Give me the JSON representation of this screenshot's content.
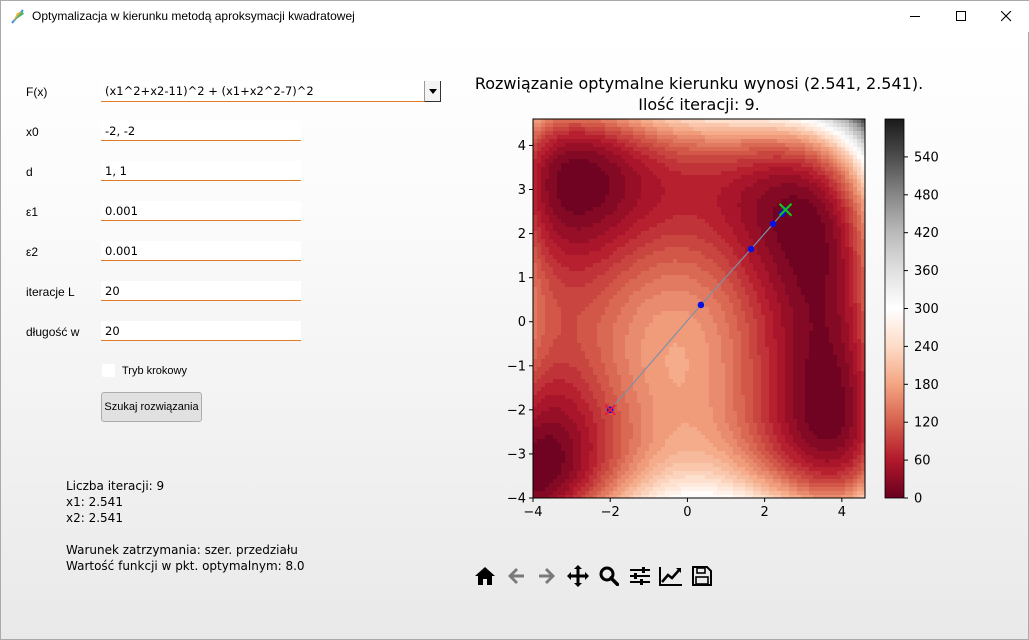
{
  "window": {
    "title": "Optymalizacja w kierunku metodą aproksymacji kwadratowej"
  },
  "form": {
    "fx_label": "F(x)",
    "fx_value": "(x1^2+x2-11)^2 + (x1+x2^2-7)^2",
    "x0_label": "x0",
    "x0_value": "-2, -2",
    "d_label": "d",
    "d_value": "1, 1",
    "eps1_label": "ε1",
    "eps1_value": "0.001",
    "eps2_label": "ε2",
    "eps2_value": "0.001",
    "iter_label": "iteracje L",
    "iter_value": "20",
    "len_label": "długość w",
    "len_value": "20",
    "step_mode_label": "Tryb krokowy",
    "step_mode_checked": false,
    "search_button": "Szukaj rozwiązania"
  },
  "results": {
    "iterations": "Liczba iteracji: 9",
    "x1": "x1: 2.541",
    "x2": "x2: 2.541",
    "blank": "",
    "stop": "Warunek zatrzymania: szer. przedziału",
    "fval": "Wartość funkcji w pkt. optymalnym: 8.0"
  },
  "plot": {
    "title_line1": "Rozwiązanie optymalne kierunku wynosi (2.541, 2.541).",
    "title_line2": "Ilość iteracji: 9."
  },
  "chart_data": {
    "type": "heatmap",
    "function": "(x1^2+x2-11)^2 + (x1+x2^2-7)^2",
    "xlim": [
      -4,
      4.6
    ],
    "ylim": [
      -4,
      4.6
    ],
    "x_ticks": [
      "−4",
      "−2",
      "0",
      "2",
      "4"
    ],
    "y_ticks": [
      "−4",
      "−3",
      "−2",
      "−1",
      "0",
      "1",
      "2",
      "3",
      "4"
    ],
    "colorbar_ticks": [
      "0",
      "60",
      "120",
      "180",
      "240",
      "300",
      "360",
      "420",
      "480",
      "540"
    ],
    "colorbar_range": [
      0,
      600
    ],
    "colormap": "RdGy",
    "start_point": {
      "x": -2,
      "y": -2
    },
    "optimum_point": {
      "x": 2.541,
      "y": 2.541
    },
    "path_points": [
      {
        "x": -2,
        "y": -2
      },
      {
        "x": 0.35,
        "y": 0.38
      },
      {
        "x": 1.65,
        "y": 1.65
      },
      {
        "x": 2.22,
        "y": 2.22
      },
      {
        "x": 2.45,
        "y": 2.45
      },
      {
        "x": 2.541,
        "y": 2.541
      }
    ],
    "colors": {
      "path_line": "#7f8fa6",
      "path_marker": "#0a10e0",
      "start_marker": "#e8183a",
      "optimum_marker": "#19c219"
    }
  },
  "toolbar": {
    "icons": [
      "home-icon",
      "back-arrow-icon",
      "forward-arrow-icon",
      "pan-icon",
      "zoom-icon",
      "configure-subplots-icon",
      "edit-axis-icon",
      "save-icon"
    ]
  }
}
